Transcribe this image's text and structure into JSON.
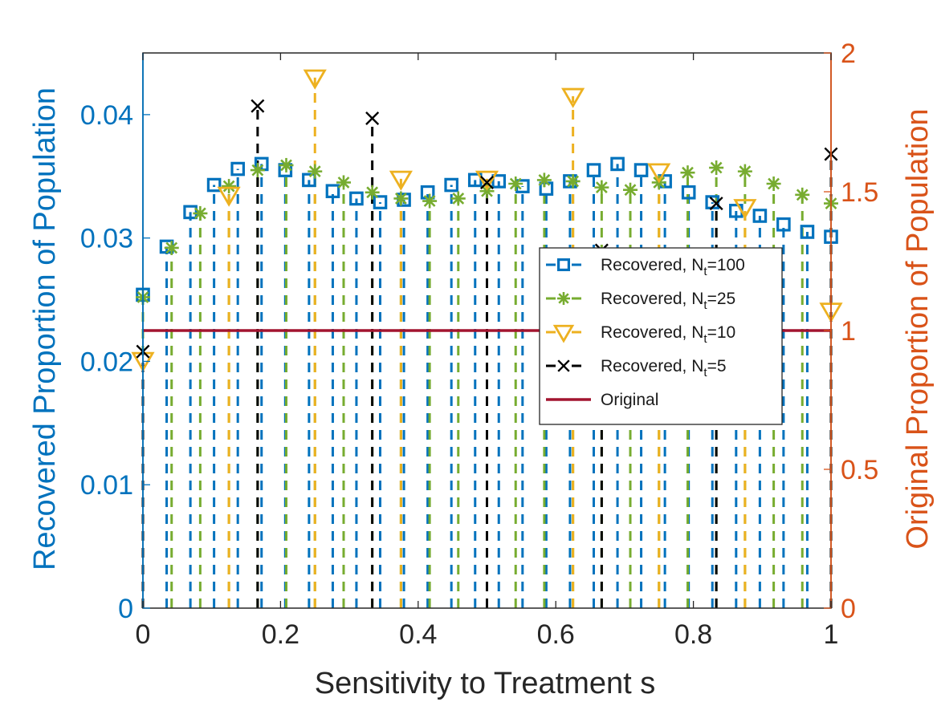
{
  "chart_data": {
    "type": "scatter",
    "xlabel": "Sensitivity to Treatment  s",
    "ylabel_left": "Recovered Proportion of Population",
    "ylabel_right": "Original Proportion of Population",
    "xlim": [
      0,
      1
    ],
    "ylim_left": [
      0,
      0.045
    ],
    "ylim_right": [
      0,
      2
    ],
    "x_ticks": [
      "0",
      "0.2",
      "0.4",
      "0.6",
      "0.8",
      "1"
    ],
    "y_left_ticks": [
      "0",
      "0.01",
      "0.02",
      "0.03",
      "0.04"
    ],
    "y_right_ticks": [
      "0",
      "0.5",
      "1",
      "1.5",
      "2"
    ],
    "legend_position": "center-right",
    "grid": false,
    "colors": {
      "left_axis": "#0072BD",
      "right_axis": "#D95319",
      "n100": "#0072BD",
      "n25": "#77AC30",
      "n10": "#EDB120",
      "n5": "#000000",
      "original": "#A2142F"
    },
    "series": [
      {
        "name": "Recovered, N",
        "subscript": "t",
        "suffix": "=100",
        "key": "n100",
        "marker": "square",
        "x": [
          0,
          0.0345,
          0.069,
          0.1034,
          0.1379,
          0.1724,
          0.2069,
          0.2414,
          0.2759,
          0.3103,
          0.3448,
          0.3793,
          0.4138,
          0.4483,
          0.4828,
          0.5172,
          0.5517,
          0.5862,
          0.6207,
          0.6552,
          0.6897,
          0.7241,
          0.7586,
          0.7931,
          0.8276,
          0.8621,
          0.8966,
          0.931,
          0.9655,
          1
        ],
        "y": [
          0.0254,
          0.0293,
          0.0321,
          0.0343,
          0.0356,
          0.036,
          0.0355,
          0.0347,
          0.0338,
          0.0332,
          0.0329,
          0.0331,
          0.0337,
          0.0343,
          0.0347,
          0.0346,
          0.0342,
          0.034,
          0.0346,
          0.0355,
          0.036,
          0.0355,
          0.0346,
          0.0337,
          0.0329,
          0.0322,
          0.0318,
          0.0311,
          0.0305,
          0.0301
        ]
      },
      {
        "name": "Recovered, N",
        "subscript": "t",
        "suffix": "=25",
        "key": "n25",
        "marker": "asterisk",
        "x": [
          0,
          0.0417,
          0.0833,
          0.125,
          0.1667,
          0.2083,
          0.25,
          0.2917,
          0.3333,
          0.375,
          0.4167,
          0.4583,
          0.5,
          0.5417,
          0.5833,
          0.625,
          0.6667,
          0.7083,
          0.75,
          0.7917,
          0.8333,
          0.875,
          0.9167,
          0.9583,
          1
        ],
        "y": [
          0.0252,
          0.0292,
          0.032,
          0.0342,
          0.0355,
          0.0359,
          0.0354,
          0.0345,
          0.0337,
          0.0332,
          0.033,
          0.0332,
          0.0338,
          0.0344,
          0.0347,
          0.0346,
          0.0341,
          0.0339,
          0.0345,
          0.0353,
          0.0357,
          0.0354,
          0.0344,
          0.0335,
          0.0328
        ]
      },
      {
        "name": "Recovered, N",
        "subscript": "t",
        "suffix": "=10",
        "key": "n10",
        "marker": "triangle-down",
        "x": [
          0,
          0.125,
          0.25,
          0.375,
          0.5,
          0.625,
          0.75,
          0.875,
          1
        ],
        "y": [
          0.0201,
          0.0335,
          0.043,
          0.0348,
          0.0348,
          0.0415,
          0.0354,
          0.0325,
          0.0241
        ]
      },
      {
        "name": "Recovered, N",
        "subscript": "t",
        "suffix": "=5",
        "key": "n5",
        "marker": "x",
        "x": [
          0,
          0.1667,
          0.3333,
          0.5,
          0.6667,
          0.8333,
          1
        ],
        "y": [
          0.0208,
          0.0407,
          0.0397,
          0.0345,
          0.029,
          0.0328,
          0.0368
        ]
      }
    ],
    "original_line": {
      "name": "Original",
      "key": "original",
      "y_right": 1
    }
  }
}
